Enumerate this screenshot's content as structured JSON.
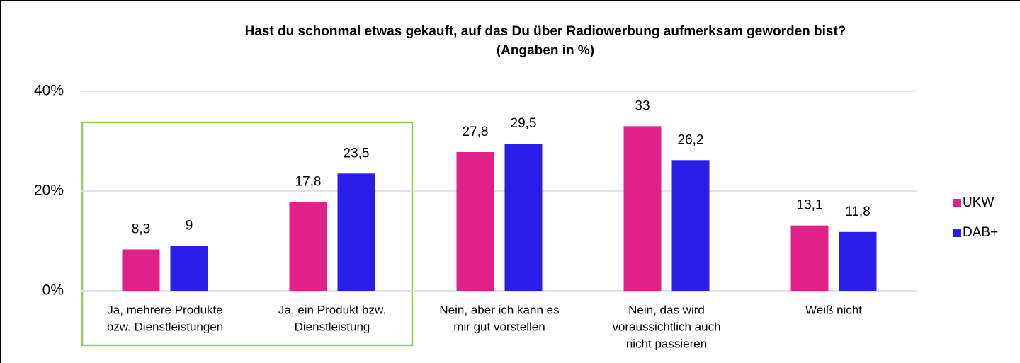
{
  "chart_data": {
    "type": "bar",
    "title": [
      "Hast du schonmal etwas gekauft, auf das Du über Radiowerbung aufmerksam geworden bist?",
      "(Angaben in %)"
    ],
    "categories": [
      [
        "Ja, mehrere Produkte",
        "bzw. Dienstleistungen"
      ],
      [
        "Ja, ein Produkt bzw.",
        "Dienstleistung"
      ],
      [
        "Nein, aber ich kann es",
        "mir gut vorstellen"
      ],
      [
        "Nein, das wird",
        "voraussichtlich auch",
        "nicht passieren"
      ],
      [
        "Weiß nicht"
      ]
    ],
    "series": [
      {
        "name": "UKW",
        "color": "#e0218a",
        "values": [
          8.3,
          17.8,
          27.8,
          33,
          13.1
        ],
        "value_labels": [
          "8,3",
          "17,8",
          "27,8",
          "33",
          "13,1"
        ]
      },
      {
        "name": "DAB+",
        "color": "#2b1de8",
        "values": [
          9,
          23.5,
          29.5,
          26.2,
          11.8
        ],
        "value_labels": [
          "9",
          "23,5",
          "29,5",
          "26,2",
          "11,8"
        ]
      }
    ],
    "ylim": [
      0,
      40
    ],
    "yticks": [
      {
        "value": 0,
        "label": "0%"
      },
      {
        "value": 20,
        "label": "20%"
      },
      {
        "value": 40,
        "label": "40%"
      }
    ],
    "grid": true,
    "legend": "right"
  }
}
